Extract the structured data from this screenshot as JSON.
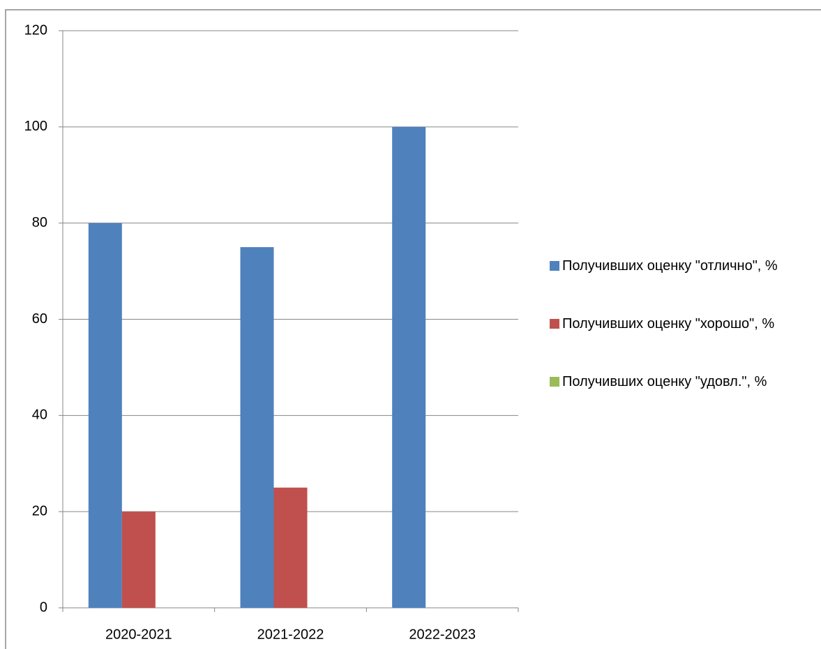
{
  "chart_data": {
    "type": "bar",
    "categories": [
      "2020-2021",
      "2021-2022",
      "2022-2023"
    ],
    "series": [
      {
        "name": "Получивших оценку \"отлично\", %",
        "color": "#4f81bd",
        "values": [
          80,
          75,
          100
        ]
      },
      {
        "name": "Получивших оценку \"хорошо\", %",
        "color": "#c0504d",
        "values": [
          20,
          25,
          0
        ]
      },
      {
        "name": "Получивших оценку \"удовл.\", %",
        "color": "#9bbb59",
        "values": [
          0,
          0,
          0
        ]
      }
    ],
    "ylim": [
      0,
      120
    ],
    "yticks": [
      0,
      20,
      40,
      60,
      80,
      100,
      120
    ],
    "grid": true,
    "legend": "right"
  }
}
